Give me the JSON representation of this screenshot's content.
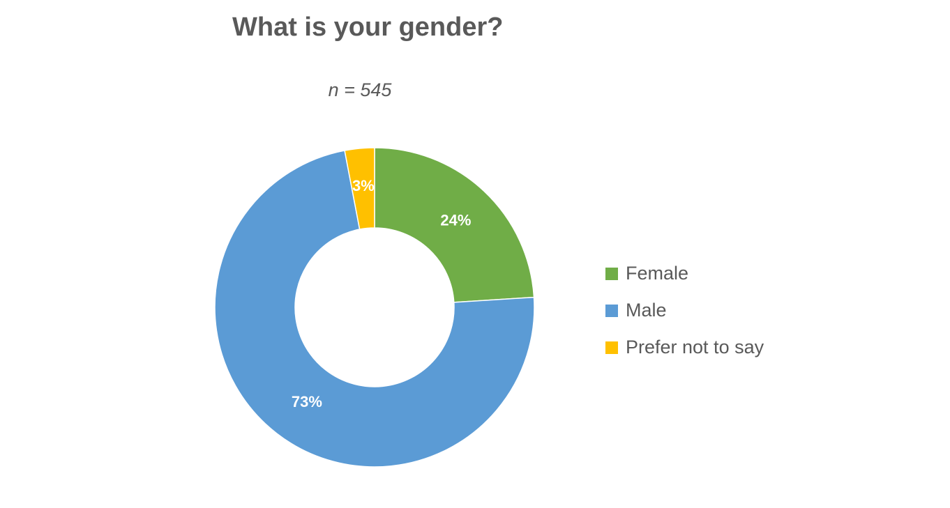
{
  "chart_data": {
    "type": "pie",
    "variant": "donut",
    "title": "What is your gender?",
    "subtitle": "n = 545",
    "categories": [
      "Female",
      "Male",
      "Prefer not to say"
    ],
    "values": [
      24,
      73,
      3
    ],
    "data_labels": [
      "24%",
      "73%",
      "3%"
    ],
    "colors": [
      "#70AD47",
      "#5B9BD5",
      "#FFC000"
    ],
    "legend_position": "right"
  }
}
